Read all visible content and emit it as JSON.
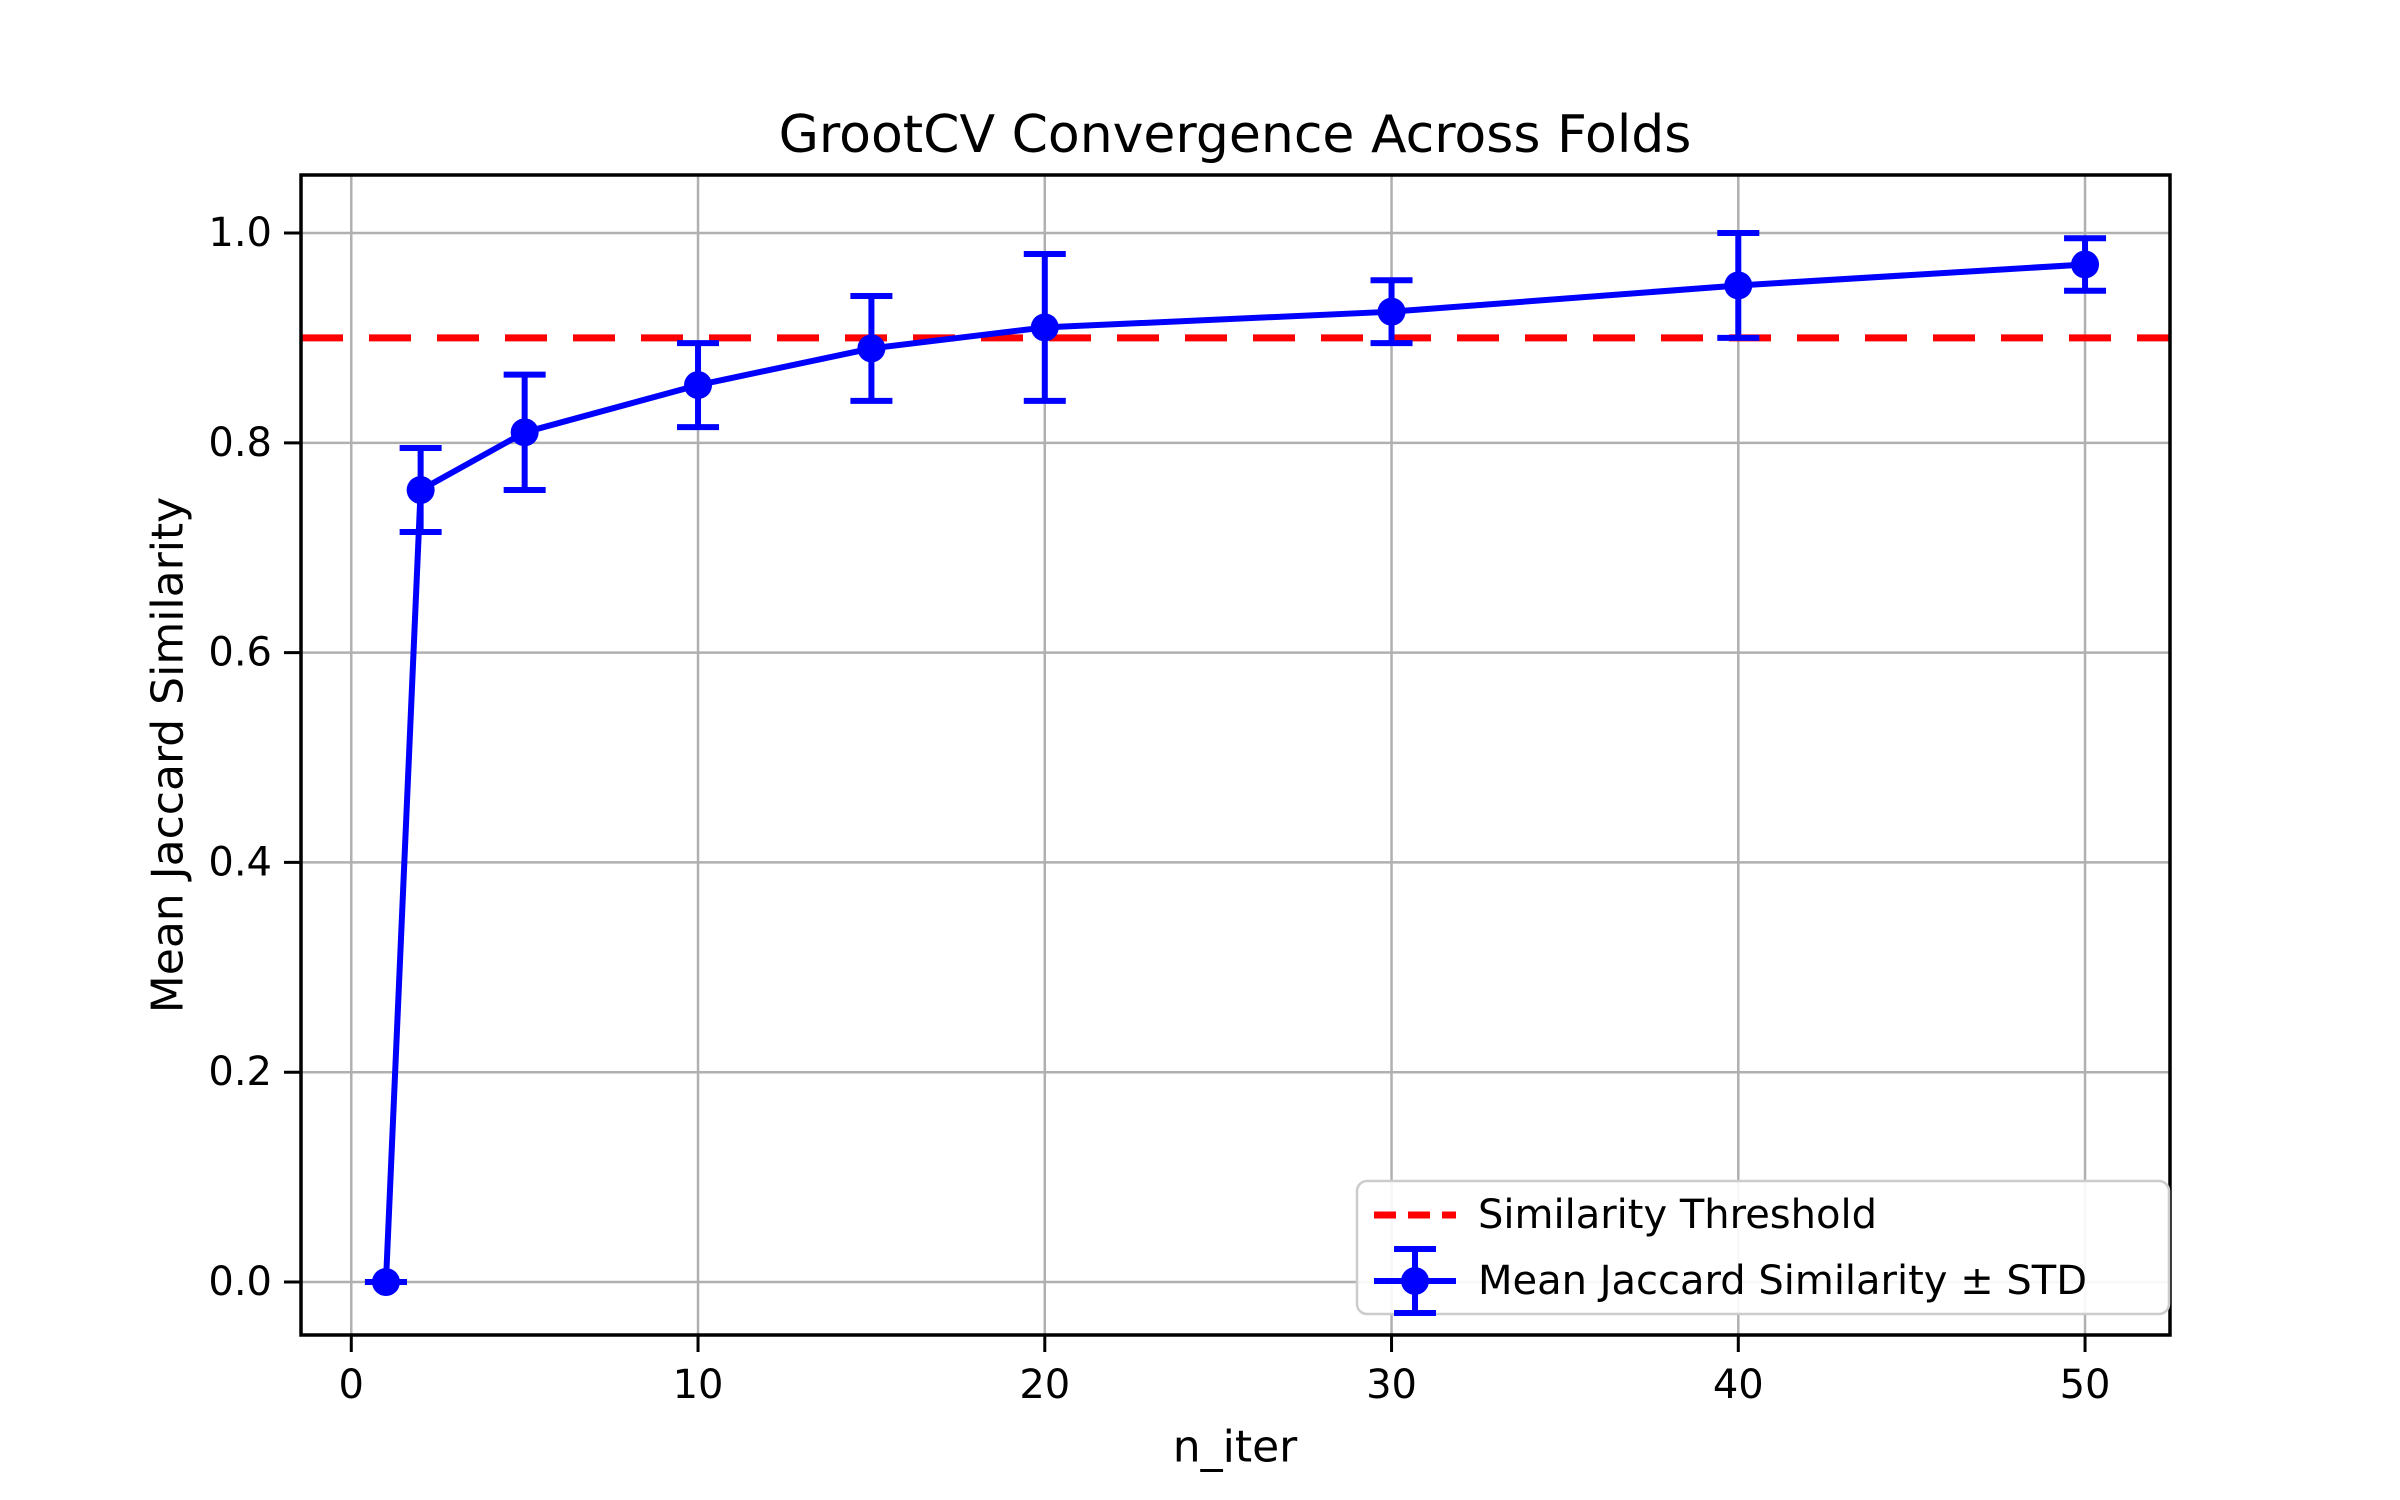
{
  "chart_data": {
    "type": "line",
    "title": "GrootCV Convergence Across Folds",
    "xlabel": "n_iter",
    "ylabel": "Mean Jaccard Similarity",
    "xlim": [
      -1.45,
      52.45
    ],
    "ylim": [
      -0.0505,
      1.0553
    ],
    "xticks": [
      "0",
      "10",
      "20",
      "30",
      "40",
      "50"
    ],
    "yticks": [
      "0.0",
      "0.2",
      "0.4",
      "0.6",
      "0.8",
      "1.0"
    ],
    "grid": true,
    "grid_color": "#b0b0b0",
    "background_color": "#ffffff",
    "threshold": {
      "label": "Similarity Threshold",
      "value": 0.9,
      "color": "#ff0000",
      "linestyle": "dashed"
    },
    "series": [
      {
        "name": "Mean Jaccard Similarity ± STD",
        "color": "#0000ff",
        "marker": "circle",
        "x": [
          1,
          2,
          5,
          10,
          15,
          20,
          30,
          40,
          50
        ],
        "mean": [
          0.0,
          0.755,
          0.81,
          0.855,
          0.89,
          0.91,
          0.925,
          0.95,
          0.97
        ],
        "std": [
          0.0,
          0.04,
          0.055,
          0.04,
          0.05,
          0.07,
          0.03,
          0.05,
          0.025
        ]
      }
    ],
    "legend": {
      "position": "lower right",
      "entries": [
        "Similarity Threshold",
        "Mean Jaccard Similarity ± STD"
      ]
    }
  }
}
